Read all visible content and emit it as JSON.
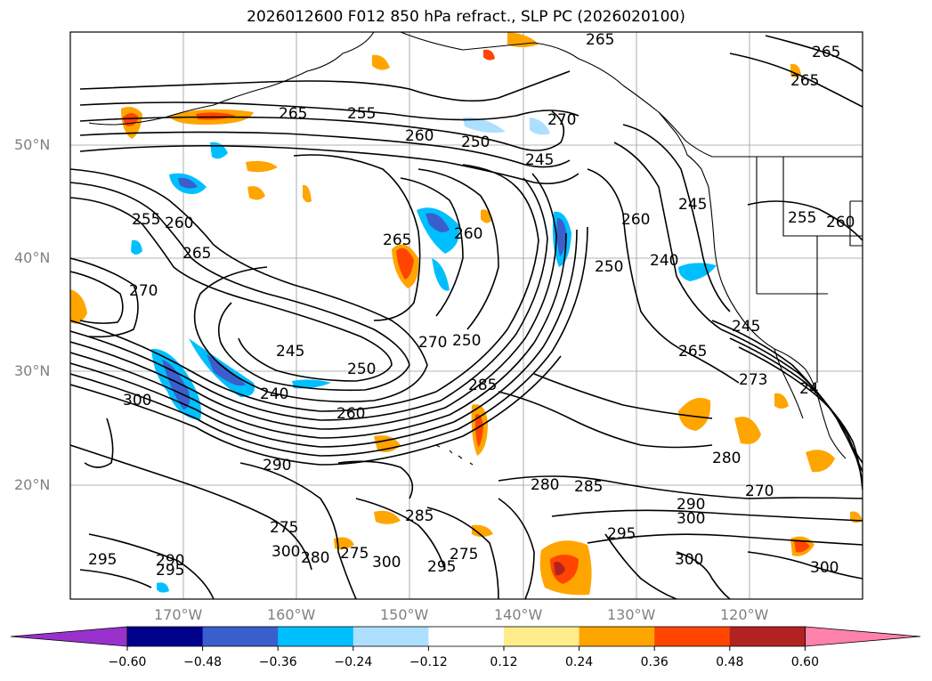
{
  "title": "2026012600 F012 850 hPa refract., SLP PC (2026020100)",
  "lat_labels": [
    "50°N",
    "40°N",
    "30°N",
    "20°N"
  ],
  "lon_labels": [
    "170°W",
    "160°W",
    "150°W",
    "140°W",
    "130°W",
    "120°W"
  ],
  "contour_labels": {
    "l265a": "265",
    "l255a": "255",
    "l265b": "265",
    "l260a": "260",
    "l250a": "250",
    "l245a": "245",
    "l270a": "270",
    "l265c": "265",
    "l265d": "265",
    "l255b": "255",
    "l260b": "260",
    "l255c": "255",
    "l260c": "260",
    "l265e": "265",
    "l270b": "270",
    "l265f": "265",
    "l260d": "260",
    "l250b": "250",
    "l240a": "240",
    "l245b": "245",
    "l260e": "260",
    "l270c": "270",
    "l250c": "250",
    "l245c": "245",
    "l250d": "250",
    "l240b": "240",
    "l260f": "260",
    "l285a": "285",
    "l300a": "300",
    "l245d": "245",
    "l265g": "265",
    "l273": "273",
    "l24": "24",
    "l280a": "280",
    "l280b": "280",
    "l285b": "285",
    "l290a": "290",
    "l300b": "300",
    "l270d": "270",
    "l295a": "295",
    "l285c": "285",
    "l275a": "275",
    "l295b": "295",
    "l300c": "300",
    "l275b": "275",
    "l290b": "290",
    "l295c": "295",
    "l300d": "300",
    "l300e": "300",
    "l290c": "290",
    "l295d": "295",
    "l280c": "280",
    "l300f": "300",
    "l275c": "275"
  },
  "colorbar": {
    "ticks": [
      "−0.60",
      "−0.48",
      "−0.36",
      "−0.24",
      "−0.12",
      "0.12",
      "0.24",
      "0.36",
      "0.48",
      "0.60"
    ],
    "colors": [
      "#9932CC",
      "#00008B",
      "#3A5FCD",
      "#00BFFF",
      "#ADDFFF",
      "#FFFFFF",
      "#FFEC8B",
      "#FFA500",
      "#FF4500",
      "#B22222",
      "#FF82AB"
    ]
  },
  "colors": {
    "contour": "#000000",
    "grid": "#808080",
    "axis_label": "#808080"
  }
}
